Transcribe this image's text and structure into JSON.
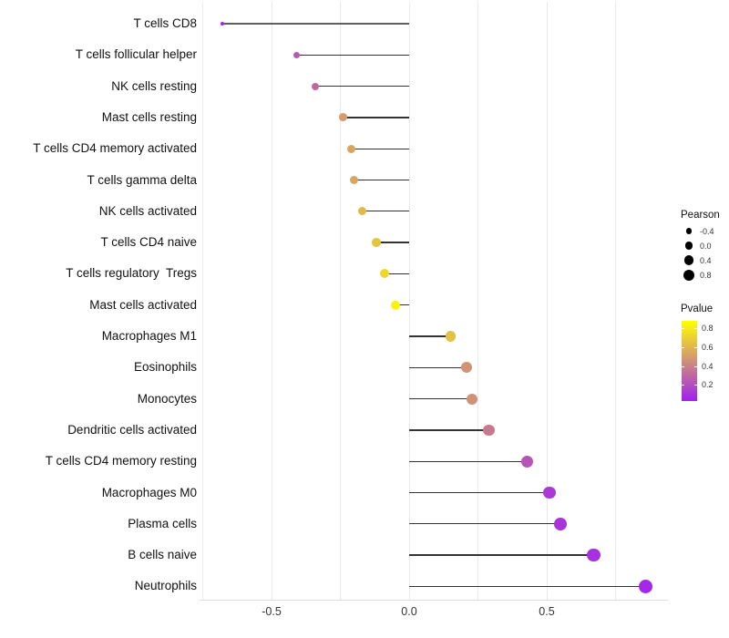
{
  "chart_data": {
    "type": "lollipop",
    "orientation": "horizontal",
    "title": "",
    "xlabel": "",
    "ylabel": "",
    "x_axis": {
      "tick_labels": [
        "-0.5",
        "0.0",
        "0.5"
      ],
      "tick_values": [
        -0.5,
        0.0,
        0.5
      ],
      "gridline_values": [
        -0.75,
        -0.5,
        -0.25,
        0.0,
        0.25,
        0.5,
        0.75
      ],
      "range": [
        -0.76,
        0.94
      ]
    },
    "points": [
      {
        "label": "T cells CD8",
        "pearson": -0.68,
        "pvalue": 0.05,
        "stem": "thick"
      },
      {
        "label": "T cells follicular helper",
        "pearson": -0.41,
        "pvalue": 0.25,
        "stem": "normal"
      },
      {
        "label": "NK cells resting",
        "pearson": -0.34,
        "pvalue": 0.31,
        "stem": "normal"
      },
      {
        "label": "Mast cells resting",
        "pearson": -0.24,
        "pvalue": 0.5,
        "stem": "normal"
      },
      {
        "label": "T cells CD4 memory activated",
        "pearson": -0.21,
        "pvalue": 0.54,
        "stem": "normal"
      },
      {
        "label": "T cells gamma delta",
        "pearson": -0.2,
        "pvalue": 0.54,
        "stem": "normal"
      },
      {
        "label": "NK cells activated",
        "pearson": -0.17,
        "pvalue": 0.61,
        "stem": "normal"
      },
      {
        "label": "T cells CD4 naive",
        "pearson": -0.12,
        "pvalue": 0.66,
        "stem": "normal"
      },
      {
        "label": "T cells regulatory  Tregs",
        "pearson": -0.09,
        "pvalue": 0.73,
        "stem": "normal"
      },
      {
        "label": "Mast cells activated",
        "pearson": -0.05,
        "pvalue": 0.83,
        "stem": "normal"
      },
      {
        "label": "Macrophages M1",
        "pearson": 0.15,
        "pvalue": 0.64,
        "stem": "normal"
      },
      {
        "label": "Eosinophils",
        "pearson": 0.21,
        "pvalue": 0.47,
        "stem": "normal"
      },
      {
        "label": "Monocytes",
        "pearson": 0.23,
        "pvalue": 0.46,
        "stem": "normal"
      },
      {
        "label": "Dendritic cells activated",
        "pearson": 0.29,
        "pvalue": 0.37,
        "stem": "normal"
      },
      {
        "label": "T cells CD4 memory resting",
        "pearson": 0.43,
        "pvalue": 0.23,
        "stem": "normal"
      },
      {
        "label": "Macrophages M0",
        "pearson": 0.51,
        "pvalue": 0.13,
        "stem": "normal"
      },
      {
        "label": "Plasma cells",
        "pearson": 0.55,
        "pvalue": 0.11,
        "stem": "normal"
      },
      {
        "label": "B cells naive",
        "pearson": 0.67,
        "pvalue": 0.09,
        "stem": "normal"
      },
      {
        "label": "Neutrophils",
        "pearson": 0.86,
        "pvalue": 0.06,
        "stem": "normal"
      }
    ],
    "legend": {
      "size": {
        "title": "Pearson",
        "item_labels": [
          "-0.4",
          "0.0",
          "0.4",
          "0.8"
        ],
        "item_values": [
          -0.4,
          0.0,
          0.4,
          0.8
        ]
      },
      "color": {
        "title": "Pvalue",
        "tick_labels": [
          "0.8",
          "0.6",
          "0.4",
          "0.2"
        ],
        "tick_values": [
          0.8,
          0.6,
          0.4,
          0.2
        ],
        "domain_min": 0.03,
        "domain_max": 0.88,
        "low_color": "#A020F0",
        "high_color": "#FFFF00"
      }
    },
    "colors": {
      "stem": "#333333",
      "stem_thick": "#5f5f5f",
      "gridline": "#e9e9e9",
      "axis_text": "#333333",
      "category_text": "#111111",
      "legend_dot": "#000000",
      "background": "#ffffff"
    },
    "legend_position": "right",
    "grid": "vertical-only"
  }
}
